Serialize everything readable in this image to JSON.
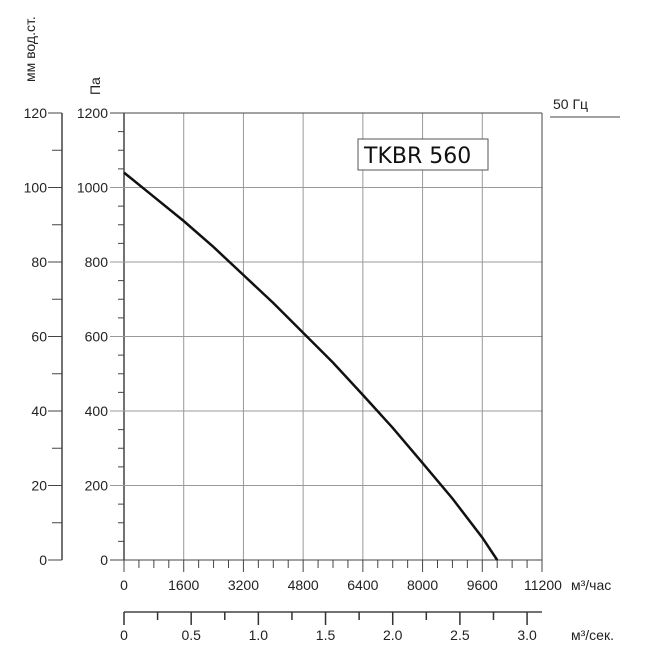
{
  "chart_data": {
    "type": "line",
    "title": "TKBR 560",
    "frequency_label": "50 Гц",
    "xlabel": "м³/час",
    "xlabel2": "м³/сек.",
    "ylabel": "Па",
    "ylabel2": "мм вод.ст.",
    "xlim": [
      0,
      11200
    ],
    "ylim": [
      0,
      1200
    ],
    "ylim2": [
      0,
      120
    ],
    "x2lim": [
      0,
      3.0
    ],
    "grid": true,
    "x_ticks": [
      "0",
      "1600",
      "3200",
      "4800",
      "6400",
      "8000",
      "9600",
      "11200"
    ],
    "y_ticks": [
      "0",
      "200",
      "400",
      "600",
      "800",
      "1000",
      "1200"
    ],
    "y2_ticks": [
      "0",
      "20",
      "40",
      "60",
      "80",
      "100",
      "120"
    ],
    "x2_ticks": [
      "0",
      "0.5",
      "1.0",
      "1.5",
      "2.0",
      "2.5",
      "3.0"
    ],
    "series": [
      {
        "name": "TKBR 560",
        "x": [
          0,
          800,
          1600,
          2400,
          3200,
          4000,
          4800,
          5600,
          6400,
          7200,
          8000,
          8800,
          9600,
          10000
        ],
        "y": [
          1040,
          975,
          910,
          840,
          765,
          690,
          610,
          530,
          443,
          355,
          260,
          165,
          60,
          0
        ]
      }
    ]
  }
}
